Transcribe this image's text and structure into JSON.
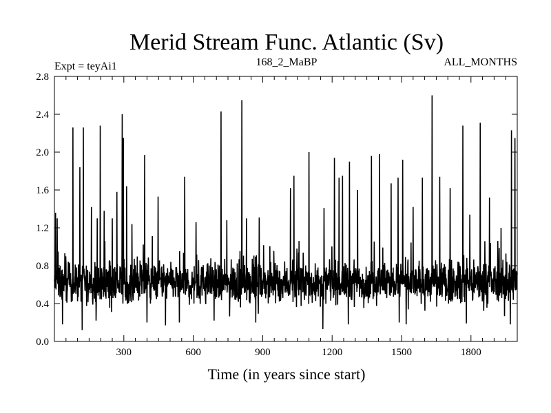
{
  "chart_data": {
    "type": "line",
    "title": "Merid Stream Func. Atlantic (Sv)",
    "annotations": {
      "left": "Expt = teyAi1",
      "center": "168_2_MaBP",
      "right": "ALL_MONTHS"
    },
    "xlabel": "Time (in years since start)",
    "ylabel": "",
    "xlim": [
      0,
      2000
    ],
    "ylim": [
      0.0,
      2.8
    ],
    "x_ticks": [
      300,
      600,
      900,
      1200,
      1500,
      1800
    ],
    "y_ticks": [
      "0.0",
      "0.4",
      "0.8",
      "1.2",
      "1.6",
      "2.0",
      "2.4",
      "2.8"
    ],
    "grid": false,
    "series_style": {
      "color": "#000000"
    },
    "baseline": {
      "mean": 0.62,
      "amplitude": 0.18,
      "x_start": 0,
      "x_end": 2000,
      "step": 1
    },
    "peaks": [
      {
        "x": 5,
        "y": 1.36
      },
      {
        "x": 12,
        "y": 1.3
      },
      {
        "x": 80,
        "y": 2.26
      },
      {
        "x": 110,
        "y": 1.84
      },
      {
        "x": 125,
        "y": 2.26
      },
      {
        "x": 160,
        "y": 1.42
      },
      {
        "x": 185,
        "y": 1.3
      },
      {
        "x": 198,
        "y": 2.28
      },
      {
        "x": 215,
        "y": 1.38
      },
      {
        "x": 250,
        "y": 1.3
      },
      {
        "x": 270,
        "y": 1.58
      },
      {
        "x": 293,
        "y": 2.4
      },
      {
        "x": 298,
        "y": 2.15
      },
      {
        "x": 312,
        "y": 1.64
      },
      {
        "x": 335,
        "y": 1.24
      },
      {
        "x": 390,
        "y": 1.97
      },
      {
        "x": 448,
        "y": 1.53
      },
      {
        "x": 563,
        "y": 1.74
      },
      {
        "x": 612,
        "y": 1.26
      },
      {
        "x": 720,
        "y": 2.43
      },
      {
        "x": 745,
        "y": 1.28
      },
      {
        "x": 810,
        "y": 2.55
      },
      {
        "x": 830,
        "y": 1.3
      },
      {
        "x": 885,
        "y": 1.31
      },
      {
        "x": 1020,
        "y": 1.62
      },
      {
        "x": 1035,
        "y": 1.75
      },
      {
        "x": 1100,
        "y": 2.0
      },
      {
        "x": 1165,
        "y": 1.41
      },
      {
        "x": 1210,
        "y": 1.94
      },
      {
        "x": 1230,
        "y": 1.73
      },
      {
        "x": 1245,
        "y": 1.75
      },
      {
        "x": 1275,
        "y": 1.9
      },
      {
        "x": 1310,
        "y": 1.6
      },
      {
        "x": 1370,
        "y": 1.96
      },
      {
        "x": 1405,
        "y": 1.98
      },
      {
        "x": 1455,
        "y": 1.67
      },
      {
        "x": 1485,
        "y": 1.73
      },
      {
        "x": 1505,
        "y": 1.92
      },
      {
        "x": 1550,
        "y": 1.42
      },
      {
        "x": 1590,
        "y": 1.73
      },
      {
        "x": 1632,
        "y": 2.6
      },
      {
        "x": 1665,
        "y": 1.74
      },
      {
        "x": 1710,
        "y": 1.62
      },
      {
        "x": 1765,
        "y": 2.28
      },
      {
        "x": 1795,
        "y": 1.34
      },
      {
        "x": 1840,
        "y": 2.31
      },
      {
        "x": 1880,
        "y": 1.52
      },
      {
        "x": 1930,
        "y": 1.2
      },
      {
        "x": 1975,
        "y": 2.23
      },
      {
        "x": 1990,
        "y": 2.15
      }
    ],
    "troughs": [
      {
        "x": 35,
        "y": 0.18
      },
      {
        "x": 120,
        "y": 0.12
      },
      {
        "x": 180,
        "y": 0.22
      },
      {
        "x": 400,
        "y": 0.2
      },
      {
        "x": 480,
        "y": 0.17
      },
      {
        "x": 540,
        "y": 0.2
      },
      {
        "x": 690,
        "y": 0.22
      },
      {
        "x": 870,
        "y": 0.2
      },
      {
        "x": 1160,
        "y": 0.13
      },
      {
        "x": 1270,
        "y": 0.18
      },
      {
        "x": 1490,
        "y": 0.2
      },
      {
        "x": 1520,
        "y": 0.18
      },
      {
        "x": 1780,
        "y": 0.19
      },
      {
        "x": 1970,
        "y": 0.18
      }
    ]
  }
}
